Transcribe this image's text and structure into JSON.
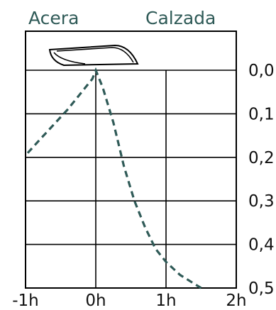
{
  "zones": {
    "left": "Acera",
    "right": "Calzada"
  },
  "chart_data": {
    "type": "line",
    "title": "",
    "xlabel": "",
    "ylabel": "",
    "x_ticks": [
      {
        "value": -1,
        "label": "-1h"
      },
      {
        "value": 0,
        "label": "0h"
      },
      {
        "value": 1,
        "label": "1h"
      },
      {
        "value": 2,
        "label": "2h"
      }
    ],
    "y_ticks": [
      {
        "value": 0.0,
        "label": "0,0"
      },
      {
        "value": 0.1,
        "label": "0,1"
      },
      {
        "value": 0.2,
        "label": "0,2"
      },
      {
        "value": 0.3,
        "label": "0,3"
      },
      {
        "value": 0.4,
        "label": "0,4"
      },
      {
        "value": 0.5,
        "label": "0,5"
      }
    ],
    "xlim": [
      -1,
      2
    ],
    "ylim": [
      0,
      0.5
    ],
    "y_inverted": true,
    "grid": true,
    "series": [
      {
        "name": "",
        "style": "dashed",
        "color": "#2f5a57",
        "points": [
          [
            -0.97,
            0.19
          ],
          [
            -0.8,
            0.16
          ],
          [
            -0.6,
            0.125
          ],
          [
            -0.4,
            0.09
          ],
          [
            -0.2,
            0.05
          ],
          [
            -0.05,
            0.02
          ],
          [
            0.0,
            0.0
          ],
          [
            0.1,
            0.04
          ],
          [
            0.25,
            0.12
          ],
          [
            0.4,
            0.22
          ],
          [
            0.55,
            0.3
          ],
          [
            0.7,
            0.36
          ],
          [
            0.85,
            0.41
          ],
          [
            1.0,
            0.44
          ],
          [
            1.2,
            0.47
          ],
          [
            1.5,
            0.5
          ]
        ]
      }
    ],
    "icon": "curb-cross-section-icon"
  },
  "colors": {
    "line": "#2f5a57",
    "grid": "#000000",
    "text": "#111111",
    "zone_text": "#2f5a57"
  }
}
